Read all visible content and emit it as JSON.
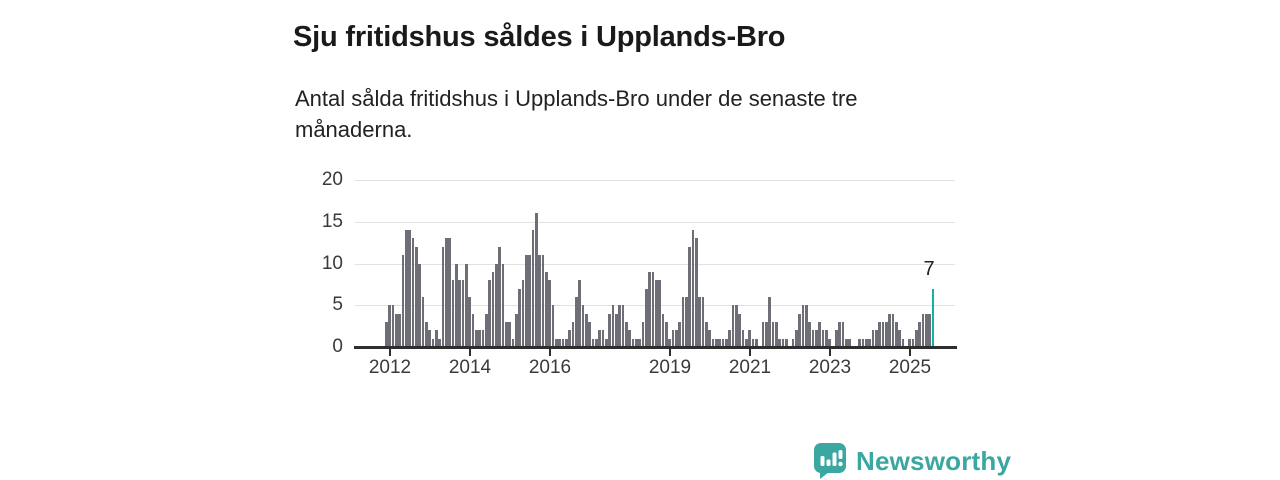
{
  "header": {
    "title": "Sju fritidshus såldes i Upplands-Bro",
    "subtitle_line1": "Antal sålda fritidshus i Upplands-Bro under de senaste tre",
    "subtitle_line2": "månaderna."
  },
  "footer": {
    "brand": "Newsworthy"
  },
  "colors": {
    "bar_default": "#6e6e76",
    "bar_highlight": "#14b1a7",
    "brand_teal": "#3aa7a1",
    "gridline": "#e2e2e2",
    "axis": "#2e2e2e",
    "text_dark": "#1a1a1a"
  },
  "chart_data": {
    "type": "bar",
    "title": "Sju fritidshus såldes i Upplands-Bro",
    "subtitle": "Antal sålda fritidshus i Upplands-Bro under de senaste tre månaderna.",
    "x_start_month": "2011-12",
    "x_end_month": "2025-08",
    "x_tick_years": [
      "2012",
      "2014",
      "2016",
      "2019",
      "2021",
      "2023",
      "2025"
    ],
    "y_ticks": [
      0,
      5,
      10,
      15,
      20
    ],
    "ylim": [
      0,
      20
    ],
    "grid": "horizontal",
    "legend": "none",
    "values": [
      3,
      5,
      5,
      4,
      4,
      11,
      14,
      14,
      13,
      12,
      10,
      6,
      3,
      2,
      1,
      2,
      1,
      12,
      13,
      13,
      8,
      10,
      8,
      8,
      10,
      6,
      4,
      2,
      2,
      2,
      4,
      8,
      9,
      10,
      12,
      10,
      3,
      3,
      1,
      4,
      7,
      8,
      11,
      11,
      14,
      16,
      11,
      11,
      9,
      8,
      5,
      1,
      1,
      1,
      1,
      2,
      3,
      6,
      8,
      5,
      4,
      3,
      1,
      1,
      2,
      2,
      1,
      4,
      5,
      4,
      5,
      5,
      3,
      2,
      1,
      1,
      1,
      3,
      7,
      9,
      9,
      8,
      8,
      4,
      3,
      1,
      2,
      2,
      3,
      6,
      6,
      12,
      14,
      13,
      6,
      6,
      3,
      2,
      1,
      1,
      1,
      1,
      1,
      2,
      5,
      5,
      4,
      2,
      1,
      2,
      1,
      1,
      0,
      3,
      3,
      6,
      3,
      3,
      1,
      1,
      1,
      0,
      1,
      2,
      4,
      5,
      5,
      3,
      2,
      2,
      3,
      2,
      2,
      1,
      0,
      2,
      3,
      3,
      1,
      1,
      0,
      0,
      1,
      1,
      1,
      1,
      2,
      2,
      3,
      3,
      3,
      4,
      4,
      3,
      2,
      1,
      0,
      1,
      1,
      2,
      3,
      4,
      4,
      4,
      7
    ],
    "highlight_last": true,
    "last_value_label": "7"
  }
}
